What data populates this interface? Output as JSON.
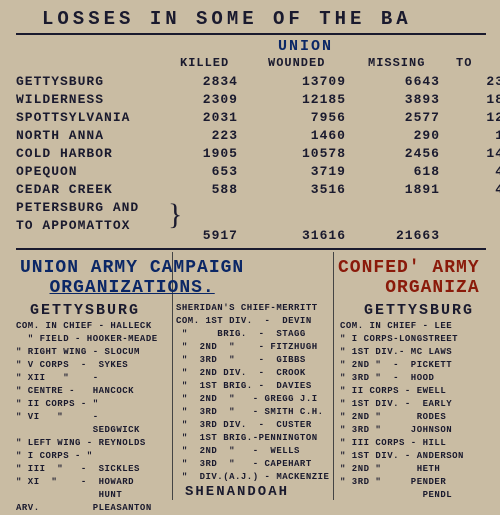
{
  "title": "LOSSES IN SOME OF THE BA",
  "union_label": "UNION",
  "table": {
    "headers": {
      "killed": "KILLED",
      "wounded": "WOUNDED",
      "missing": "MISSING",
      "total": "TO"
    },
    "rows": [
      {
        "battle": "GETTYSBURG",
        "killed": "2834",
        "wounded": "13709",
        "missing": "6643",
        "total": "23"
      },
      {
        "battle": "WILDERNESS",
        "killed": "2309",
        "wounded": "12185",
        "missing": "3893",
        "total": "18"
      },
      {
        "battle": "SPOTTSYLVANIA",
        "killed": "2031",
        "wounded": "7956",
        "missing": "2577",
        "total": "12"
      },
      {
        "battle": "NORTH ANNA",
        "killed": "223",
        "wounded": "1460",
        "missing": "290",
        "total": "1"
      },
      {
        "battle": "COLD HARBOR",
        "killed": "1905",
        "wounded": "10578",
        "missing": "2456",
        "total": "14"
      },
      {
        "battle": "OPEQUON",
        "killed": "653",
        "wounded": "3719",
        "missing": "618",
        "total": "4"
      },
      {
        "battle": "CEDAR CREEK",
        "killed": "588",
        "wounded": "3516",
        "missing": "1891",
        "total": "4"
      }
    ],
    "combined": {
      "line1": "PETERSBURG AND",
      "line2": "TO APPOMATTOX",
      "killed": "5917",
      "wounded": "31616",
      "missing": "21663",
      "total": " "
    }
  },
  "sections": {
    "union_campaign": {
      "line1": "UNION ARMY CAMPAIGN",
      "line2": "ORGANIZATIONS."
    },
    "confed_campaign": {
      "line1": "CONFED' ARMY",
      "line2": "ORGANIZA"
    },
    "gettysburg": "GETTYSBURG",
    "sheridan": "SHERIDAN'S CHIEF-MERRITT",
    "shenandoah": "SHENANDOAH"
  },
  "colA_lines": [
    "COM. IN CHIEF - HALLECK",
    "  \" FIELD - HOOKER-MEADE",
    "\" RIGHT WING - SLOCUM",
    "\" V CORPS  -  SYKES",
    "\" XII   \"    -  ",
    "\" CENTRE -   HANCOCK",
    "\" II CORPS - \"",
    "\" VI   \"     -",
    "             SEDGWICK",
    "\" LEFT WING - REYNOLDS",
    "\" I CORPS - \"",
    "\" III  \"   -  SICKLES",
    "\" XI  \"    -  HOWARD",
    "              HUNT",
    "ARV.         PLEASANTON"
  ],
  "colB_lines": [
    "SHERIDAN'S CHIEF-MERRITT",
    "COM. 1ST DIV.  -  DEVIN",
    " \"     BRIG.  -  STAGG",
    " \"  2ND  \"    - FITZHUGH",
    " \"  3RD  \"    -  GIBBS",
    " \"  2ND DIV.  -  CROOK",
    " \"  1ST BRIG. -  DAVIES",
    " \"  2ND  \"   - GREGG J.I",
    " \"  3RD  \"   - SMITH C.H.",
    " \"  3RD DIV.  -  CUSTER",
    " \"  1ST BRIG.-PENNINGTON",
    " \"  2ND  \"   -  WELLS",
    " \"  3RD  \"   - CAPEHART",
    " \"  DIV.(A.J.) - MACKENZIE"
  ],
  "colC_lines": [
    "COM. IN CHIEF - LEE",
    "\" I CORPS-LONGSTREET",
    "\" 1ST DIV.- MC LAWS",
    "\" 2ND \"  -  PICKETT",
    "\" 3RD \"  -  HOOD",
    "\" II CORPS - EWELL",
    "\" 1ST DIV. -  EARLY",
    "\" 2ND \"      RODES",
    "\" 3RD \"     JOHNSON",
    "\" III CORPS - HILL",
    "\" 1ST DIV. - ANDERSON",
    "\" 2ND \"      HETH",
    "\" 3RD \"     PENDER",
    "              PENDL"
  ],
  "colors": {
    "bg": "#c9bca3",
    "ink": "#1a1a2e",
    "union_blue": "#0b2766",
    "confed_red": "#8a1a0a"
  }
}
